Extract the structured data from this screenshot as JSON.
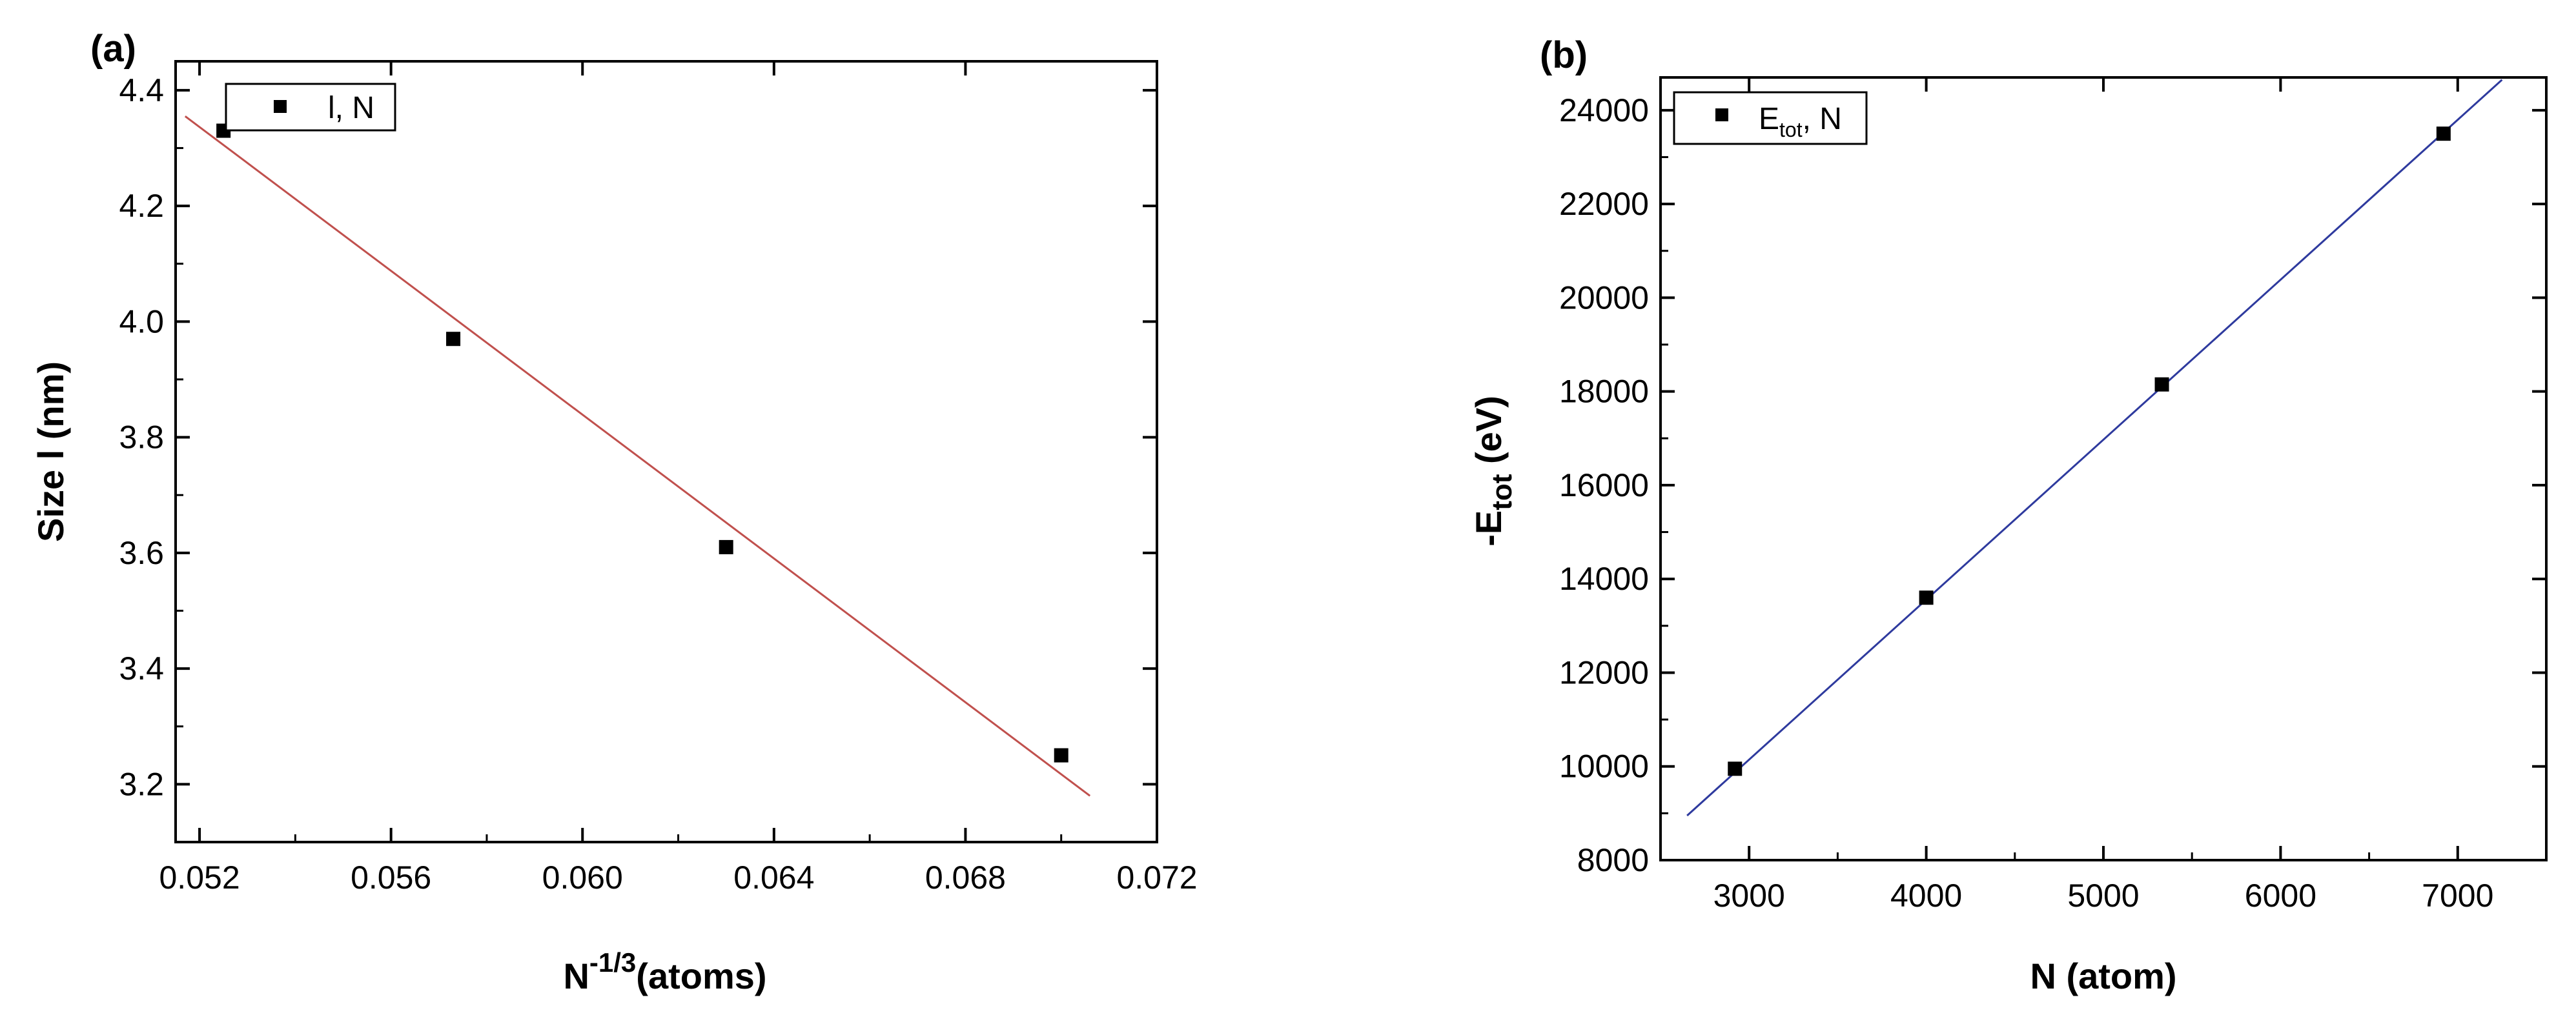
{
  "chart_data": [
    {
      "type": "scatter",
      "panel_label": "(a)",
      "xlabel_main": "N",
      "xlabel_sup": "-1/3",
      "xlabel_unit": "(atoms)",
      "ylabel": "Size l (nm)",
      "xlim": [
        0.0515,
        0.072
      ],
      "ylim": [
        3.1,
        4.45
      ],
      "xticks": [
        0.052,
        0.056,
        0.06,
        0.064,
        0.068,
        0.072
      ],
      "xtick_labels": [
        "0.052",
        "0.056",
        "0.060",
        "0.064",
        "0.068",
        "0.072"
      ],
      "yticks": [
        3.2,
        3.4,
        3.6,
        3.8,
        4.0,
        4.2,
        4.4
      ],
      "ytick_labels": [
        "3.2",
        "3.4",
        "3.6",
        "3.8",
        "4.0",
        "4.2",
        "4.4"
      ],
      "series": [
        {
          "name": "l, N",
          "x": [
            0.0525,
            0.0573,
            0.063,
            0.07
          ],
          "y": [
            4.33,
            3.97,
            3.61,
            3.25
          ]
        }
      ],
      "fit_line": {
        "x": [
          0.0517,
          0.0706
        ],
        "y": [
          4.355,
          3.18
        ],
        "color": "#c0504d"
      },
      "legend": {
        "label": "l, N",
        "position": "top-left"
      }
    },
    {
      "type": "scatter",
      "panel_label": "(b)",
      "xlabel": "N (atom)",
      "ylabel_prefix": "-E",
      "ylabel_sub": "tot",
      "ylabel_unit": " (eV)",
      "xlim": [
        2500,
        7500
      ],
      "ylim": [
        8000,
        24700
      ],
      "xticks": [
        3000,
        4000,
        5000,
        6000,
        7000
      ],
      "xtick_labels": [
        "3000",
        "4000",
        "5000",
        "6000",
        "7000"
      ],
      "yticks": [
        8000,
        10000,
        12000,
        14000,
        16000,
        18000,
        20000,
        22000,
        24000
      ],
      "ytick_labels": [
        "8000",
        "10000",
        "12000",
        "14000",
        "16000",
        "18000",
        "20000",
        "22000",
        "24000"
      ],
      "series": [
        {
          "name": "Etot, N",
          "x": [
            2920,
            4000,
            5330,
            6920
          ],
          "y": [
            9950,
            13600,
            18150,
            23500
          ]
        }
      ],
      "fit_line": {
        "x": [
          2650,
          7250
        ],
        "y": [
          8950,
          24650
        ],
        "color": "#2e3a9e"
      },
      "legend": {
        "label_main": "E",
        "label_sub": "tot",
        "label_rest": ", N",
        "position": "top-left"
      }
    }
  ]
}
